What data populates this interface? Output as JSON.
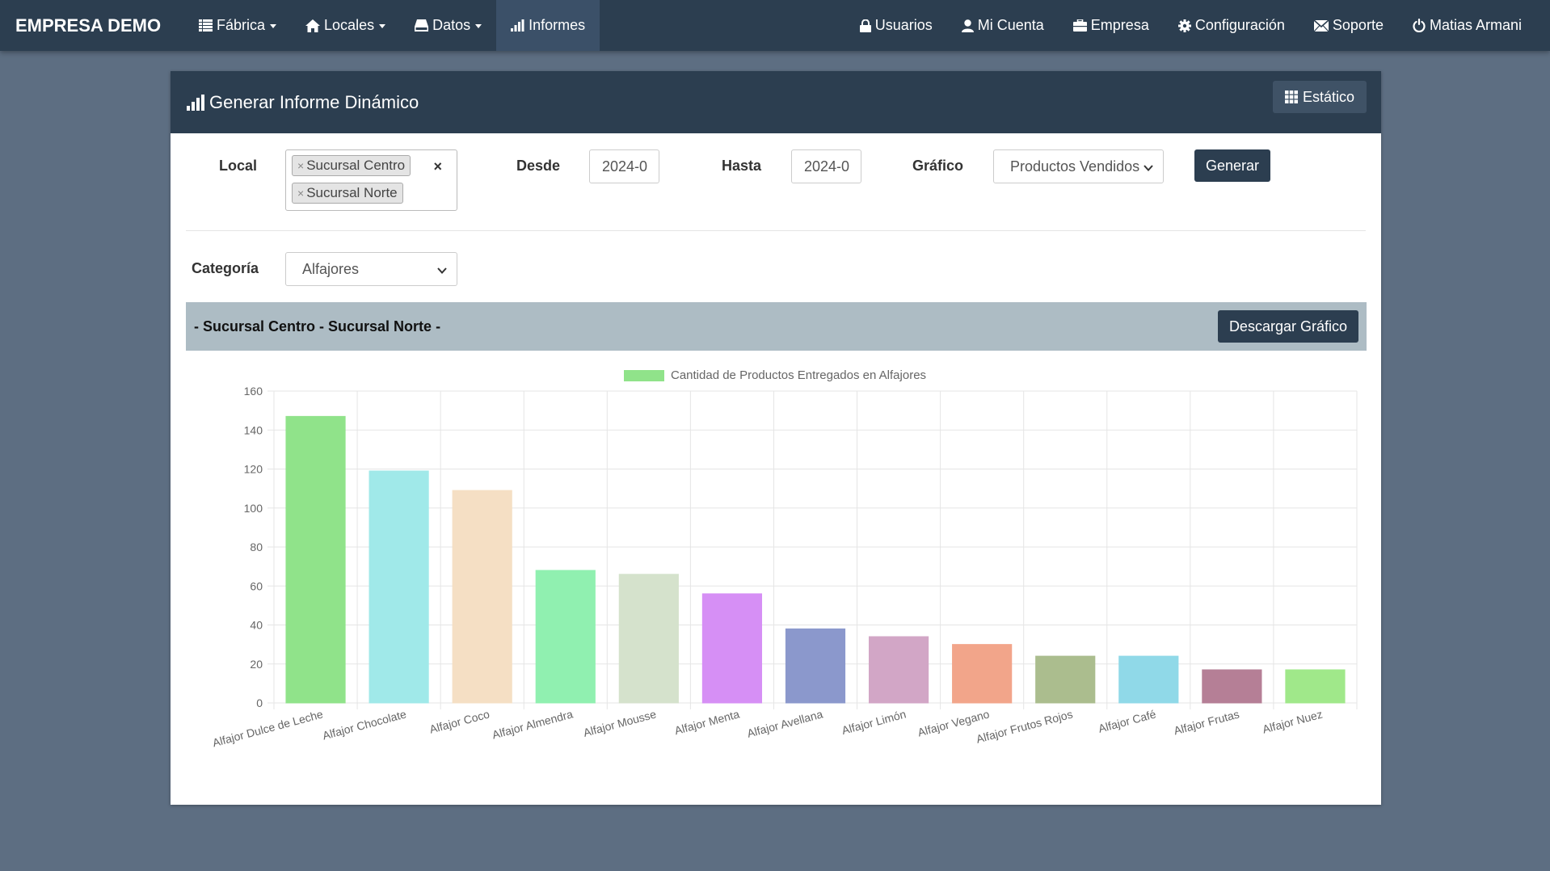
{
  "navbar": {
    "brand": "EMPRESA DEMO",
    "left": [
      {
        "label": "Fábrica",
        "icon": "table-icon",
        "dropdown": true
      },
      {
        "label": "Locales",
        "icon": "home-icon",
        "dropdown": true
      },
      {
        "label": "Datos",
        "icon": "hdd-icon",
        "dropdown": true
      },
      {
        "label": "Informes",
        "icon": "bar-chart-icon",
        "dropdown": false,
        "active": true
      }
    ],
    "right": [
      {
        "label": "Usuarios",
        "icon": "lock-icon"
      },
      {
        "label": "Mi Cuenta",
        "icon": "user-icon"
      },
      {
        "label": "Empresa",
        "icon": "briefcase-icon"
      },
      {
        "label": "Configuración",
        "icon": "gear-icon"
      },
      {
        "label": "Soporte",
        "icon": "envelope-icon"
      },
      {
        "label": "Matias Armani",
        "icon": "power-icon"
      }
    ]
  },
  "panel": {
    "title": "Generar Informe Dinámico",
    "static_button": "Estático"
  },
  "form": {
    "local_label": "Local",
    "local_tags": [
      "Sucursal Centro",
      "Sucursal Norte"
    ],
    "desde_label": "Desde",
    "desde_value": "2024-0",
    "hasta_label": "Hasta",
    "hasta_value": "2024-0",
    "grafico_label": "Gráfico",
    "grafico_value": "Productos Vendidos",
    "generar_button": "Generar",
    "categoria_label": "Categoría",
    "categoria_value": "Alfajores"
  },
  "report": {
    "header": "- Sucursal Centro - Sucursal Norte -",
    "download_button": "Descargar Gráfico"
  },
  "chart_data": {
    "type": "bar",
    "legend": "Cantidad de Productos Entregados en Alfajores",
    "legend_color": "#90e38a",
    "categories": [
      "Alfajor Dulce de Leche",
      "Alfajor Chocolate",
      "Alfajor Coco",
      "Alfajor Almendra",
      "Alfajor Mousse",
      "Alfajor Menta",
      "Alfajor Avellana",
      "Alfajor Limón",
      "Alfajor Vegano",
      "Alfajor Frutos Rojos",
      "Alfajor Café",
      "Alfajor Frutas",
      "Alfajor Nuez"
    ],
    "values": [
      147,
      119,
      109,
      68,
      66,
      56,
      38,
      34,
      30,
      24,
      24,
      17,
      17
    ],
    "colors": [
      "#90e38a",
      "#a0e9e9",
      "#f5dfc4",
      "#90f0b0",
      "#d5e2cc",
      "#d68ff5",
      "#8b98cc",
      "#d2a6c6",
      "#f2a58a",
      "#abbd8e",
      "#90d9e8",
      "#b57f96",
      "#a0e88a"
    ],
    "ylim": [
      0,
      160
    ],
    "yticks": [
      0,
      20,
      40,
      60,
      80,
      100,
      120,
      140,
      160
    ],
    "grid": true,
    "legend_position": "top"
  }
}
